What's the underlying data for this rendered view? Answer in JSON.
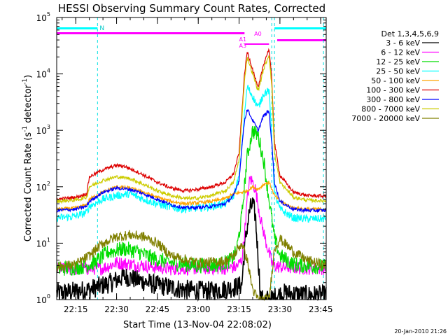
{
  "chart_data": {
    "type": "line",
    "title": "HESSI Observing Summary Count Rates, Corrected",
    "xlabel": "Start Time (13-Nov-04 22:08:02)",
    "ylabel_main": "Corrected Count Rate (s",
    "ylabel_sup1": "-1",
    "ylabel_mid": " detector",
    "ylabel_sup2": "-1",
    "ylabel_end": ")",
    "yscale": "log",
    "xlim": [
      "22:08",
      "23:47"
    ],
    "ylim": [
      1,
      100000
    ],
    "x_ticks": [
      "22:15",
      "22:30",
      "22:45",
      "23:00",
      "23:15",
      "23:30",
      "23:45"
    ],
    "y_ticks": [
      {
        "base": "10",
        "exp": "0",
        "value": 1
      },
      {
        "base": "10",
        "exp": "1",
        "value": 10
      },
      {
        "base": "10",
        "exp": "2",
        "value": 100
      },
      {
        "base": "10",
        "exp": "3",
        "value": 1000
      },
      {
        "base": "10",
        "exp": "4",
        "value": 10000
      },
      {
        "base": "10",
        "exp": "5",
        "value": 100000
      }
    ],
    "legend_title": "Det 1,3,4,5,6,9",
    "legend_placement": "right",
    "series": [
      {
        "name": "3 - 6 keV",
        "color": "#000000",
        "x": [
          "22:08",
          "22:20",
          "22:28",
          "22:33",
          "22:38",
          "22:45",
          "22:55",
          "23:05",
          "23:12",
          "23:16",
          "23:17",
          "23:18",
          "23:19",
          "23:20",
          "23:21",
          "23:23",
          "23:25",
          "23:27",
          "23:29",
          "23:32",
          "23:40",
          "23:47"
        ],
        "y": [
          1.3,
          1.5,
          2.0,
          2.6,
          2.2,
          1.8,
          1.5,
          1.4,
          1.6,
          1.8,
          8,
          20,
          40,
          50,
          30,
          1,
          1,
          1,
          1.2,
          1.3,
          1.2,
          1.2
        ]
      },
      {
        "name": "6 - 12 keV",
        "color": "#ff00ff",
        "x": [
          "22:08",
          "22:15",
          "22:25",
          "22:30",
          "22:40",
          "22:50",
          "23:00",
          "23:10",
          "23:14",
          "23:16",
          "23:17",
          "23:18",
          "23:19",
          "23:20",
          "23:21",
          "23:23",
          "23:25",
          "23:27",
          "23:28",
          "23:30",
          "23:40",
          "23:47"
        ],
        "y": [
          3.5,
          3.5,
          3.6,
          4.5,
          4.0,
          3.5,
          3.6,
          3.6,
          3.8,
          5,
          15,
          60,
          140,
          120,
          90,
          25,
          10,
          4.5,
          4,
          3.8,
          3.6,
          3.6
        ]
      },
      {
        "name": "12 - 25 keV",
        "color": "#00dd00",
        "x": [
          "22:08",
          "22:17",
          "22:22",
          "22:27",
          "22:33",
          "22:38",
          "22:43",
          "22:50",
          "23:00",
          "23:08",
          "23:12",
          "23:14",
          "23:16",
          "23:18",
          "23:20",
          "23:22",
          "23:24",
          "23:26",
          "23:28",
          "23:30",
          "23:35",
          "23:40",
          "23:47"
        ],
        "y": [
          3.5,
          3.8,
          4.5,
          7,
          8,
          7,
          5.5,
          4.5,
          4.0,
          4.2,
          5,
          7,
          30,
          350,
          1000,
          800,
          300,
          60,
          12,
          6,
          4.2,
          4,
          3.8
        ]
      },
      {
        "name": "25 - 50 keV",
        "color": "#00ffff",
        "x": [
          "22:08",
          "22:15",
          "22:19",
          "22:20",
          "22:25",
          "22:30",
          "22:35",
          "22:40",
          "22:45",
          "22:50",
          "22:55",
          "23:00",
          "23:05",
          "23:10",
          "23:13",
          "23:15",
          "23:16",
          "23:17",
          "23:18",
          "23:20",
          "23:22",
          "23:24",
          "23:26",
          "23:27",
          "23:28",
          "23:30",
          "23:35",
          "23:40",
          "23:47"
        ],
        "y": [
          28,
          30,
          35,
          45,
          60,
          70,
          75,
          60,
          50,
          43,
          40,
          42,
          45,
          50,
          70,
          150,
          500,
          2000,
          6000,
          4000,
          2500,
          4500,
          5000,
          800,
          80,
          40,
          28,
          27,
          27
        ]
      },
      {
        "name": "50 - 100 keV",
        "color": "#ffa500",
        "x": [
          "22:08",
          "22:15",
          "22:19",
          "22:20",
          "22:25",
          "22:30",
          "22:35",
          "22:40",
          "22:45",
          "22:50",
          "22:55",
          "23:00",
          "23:05",
          "23:10",
          "23:13",
          "23:16",
          "23:18",
          "23:20",
          "23:22",
          "23:24",
          "23:26",
          "23:28",
          "23:30",
          "23:35",
          "23:40",
          "23:47"
        ],
        "y": [
          40,
          42,
          48,
          60,
          80,
          100,
          95,
          80,
          65,
          55,
          50,
          52,
          55,
          62,
          75,
          80,
          85,
          100,
          90,
          110,
          120,
          70,
          55,
          42,
          40,
          40
        ]
      },
      {
        "name": "100 - 300 keV",
        "color": "#dd0000",
        "x": [
          "22:08",
          "22:15",
          "22:19",
          "22:20",
          "22:25",
          "22:30",
          "22:33",
          "22:38",
          "22:45",
          "22:50",
          "22:55",
          "23:00",
          "23:05",
          "23:10",
          "23:13",
          "23:15",
          "23:16",
          "23:17",
          "23:18",
          "23:20",
          "23:22",
          "23:24",
          "23:26",
          "23:27",
          "23:28",
          "23:30",
          "23:35",
          "23:40",
          "23:47"
        ],
        "y": [
          60,
          65,
          75,
          150,
          200,
          240,
          230,
          180,
          120,
          95,
          85,
          90,
          100,
          120,
          170,
          400,
          2000,
          10000,
          25000,
          12000,
          5500,
          15000,
          28000,
          8000,
          600,
          160,
          80,
          70,
          68
        ]
      },
      {
        "name": "300 - 800 keV",
        "color": "#0000ff",
        "x": [
          "22:08",
          "22:15",
          "22:19",
          "22:20",
          "22:25",
          "22:30",
          "22:35",
          "22:40",
          "22:45",
          "22:50",
          "22:55",
          "23:00",
          "23:05",
          "23:10",
          "23:13",
          "23:15",
          "23:16",
          "23:17",
          "23:18",
          "23:20",
          "23:22",
          "23:24",
          "23:26",
          "23:27",
          "23:28",
          "23:30",
          "23:35",
          "23:40",
          "23:47"
        ],
        "y": [
          38,
          40,
          45,
          55,
          80,
          95,
          90,
          75,
          60,
          48,
          42,
          43,
          45,
          50,
          70,
          130,
          500,
          1500,
          2400,
          1500,
          1000,
          1800,
          2200,
          600,
          120,
          55,
          40,
          38,
          38
        ]
      },
      {
        "name": "800 - 7000 keV",
        "color": "#cccc00",
        "x": [
          "22:08",
          "22:15",
          "22:19",
          "22:20",
          "22:25",
          "22:30",
          "22:35",
          "22:40",
          "22:45",
          "22:50",
          "22:55",
          "23:00",
          "23:05",
          "23:10",
          "23:13",
          "23:15",
          "23:16",
          "23:17",
          "23:18",
          "23:20",
          "23:22",
          "23:24",
          "23:26",
          "23:27",
          "23:28",
          "23:30",
          "23:35",
          "23:40",
          "23:47"
        ],
        "y": [
          55,
          58,
          65,
          100,
          130,
          150,
          140,
          110,
          85,
          70,
          62,
          63,
          70,
          85,
          120,
          300,
          1500,
          8000,
          20000,
          10000,
          5000,
          12000,
          22000,
          6000,
          400,
          120,
          65,
          58,
          56
        ]
      },
      {
        "name": "7000 - 20000 keV",
        "color": "#808000",
        "x": [
          "22:08",
          "22:15",
          "22:20",
          "22:25",
          "22:30",
          "22:35",
          "22:40",
          "22:45",
          "22:50",
          "23:00",
          "23:10",
          "23:13",
          "23:16",
          "23:18",
          "23:20",
          "23:22",
          "23:24",
          "23:26",
          "23:28",
          "23:30",
          "23:35",
          "23:40",
          "23:47"
        ],
        "y": [
          3.8,
          4.2,
          6,
          10,
          13,
          14,
          13,
          10,
          6,
          4.5,
          4.8,
          6,
          10,
          5,
          1.5,
          1,
          1,
          1,
          8,
          12,
          7,
          5,
          4
        ]
      }
    ],
    "annotations": {
      "attenuator_labels": [
        "A1",
        "A0",
        "A3"
      ],
      "night_label": "N",
      "footer_date": "20-Jan-2010 21:26"
    }
  }
}
